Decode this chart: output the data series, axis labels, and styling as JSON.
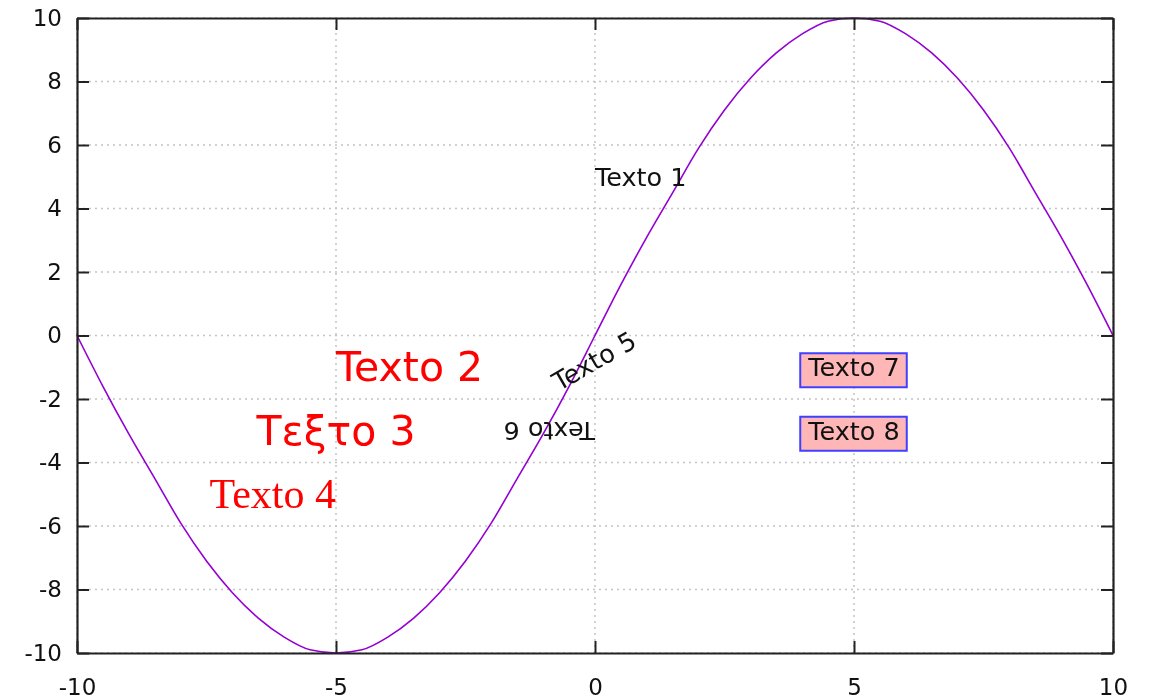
{
  "chart_data": {
    "type": "line",
    "x": [
      -10,
      -9.5,
      -9,
      -8.5,
      -8,
      -7.5,
      -7,
      -6.5,
      -6,
      -5.5,
      -5,
      -4.5,
      -4,
      -3.5,
      -3,
      -2.5,
      -2,
      -1.5,
      -1,
      -0.5,
      0,
      0.5,
      1,
      1.5,
      2,
      2.5,
      3,
      3.5,
      4,
      4.5,
      5,
      5.5,
      6,
      6.5,
      7,
      7.5,
      8,
      8.5,
      9,
      9.5,
      10
    ],
    "values": [
      0,
      -1.6,
      -3.1,
      -4.5,
      -5.9,
      -7.1,
      -8.1,
      -8.9,
      -9.5,
      -9.9,
      -10,
      -9.9,
      -9.5,
      -8.9,
      -8.1,
      -7.1,
      -5.9,
      -4.5,
      -3.1,
      -1.6,
      0,
      1.6,
      3.1,
      4.5,
      5.9,
      7.1,
      8.1,
      8.9,
      9.5,
      9.9,
      10,
      9.9,
      9.5,
      8.9,
      8.1,
      7.1,
      5.9,
      4.5,
      3.1,
      1.6,
      0
    ],
    "color": "#9400d3",
    "xlim": [
      -10,
      10
    ],
    "xticks": [
      -10,
      -5,
      0,
      5,
      10
    ],
    "ylim": [
      -10,
      10
    ],
    "yticks": [
      -10,
      -8,
      -6,
      -4,
      -2,
      0,
      2,
      4,
      6,
      8,
      10
    ],
    "grid": true,
    "annotations": [
      "Texto 1",
      "Texto 2",
      "Τεξτο 3",
      "Texto 4",
      "Texto 5",
      "Texto 6",
      "Texto 7",
      "Texto 8"
    ]
  }
}
